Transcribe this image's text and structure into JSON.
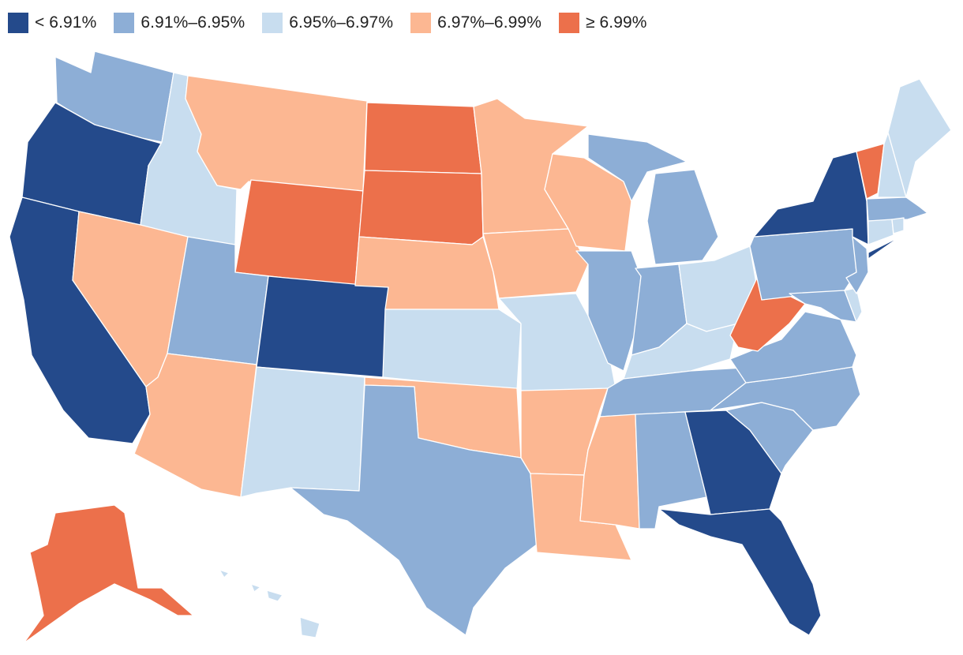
{
  "legend": {
    "bins": [
      {
        "label": "< 6.91%",
        "color": "#244a8b"
      },
      {
        "label": "6.91%–6.95%",
        "color": "#8daed6"
      },
      {
        "label": "6.95%–6.97%",
        "color": "#c8ddef"
      },
      {
        "label": "6.97%–6.99%",
        "color": "#fcb792"
      },
      {
        "label": "≥ 6.99%",
        "color": "#ec704b"
      }
    ]
  },
  "states": {
    "WA": 1,
    "OR": 0,
    "CA": 0,
    "ID": 2,
    "NV": 3,
    "MT": 3,
    "WY": 4,
    "UT": 1,
    "AZ": 3,
    "CO": 0,
    "NM": 2,
    "ND": 4,
    "SD": 4,
    "NE": 3,
    "KS": 2,
    "OK": 3,
    "TX": 1,
    "MN": 3,
    "IA": 3,
    "MO": 2,
    "AR": 3,
    "LA": 3,
    "WI": 3,
    "IL": 1,
    "MI": 1,
    "IN": 1,
    "OH": 2,
    "KY": 2,
    "TN": 1,
    "MS": 3,
    "AL": 1,
    "GA": 0,
    "FL": 0,
    "SC": 1,
    "NC": 1,
    "VA": 1,
    "WV": 4,
    "MD": 1,
    "DE": 2,
    "PA": 1,
    "NJ": 1,
    "NY": 0,
    "CT": 2,
    "RI": 2,
    "MA": 1,
    "VT": 4,
    "NH": 2,
    "ME": 2,
    "AK": 4,
    "HI": 2
  }
}
